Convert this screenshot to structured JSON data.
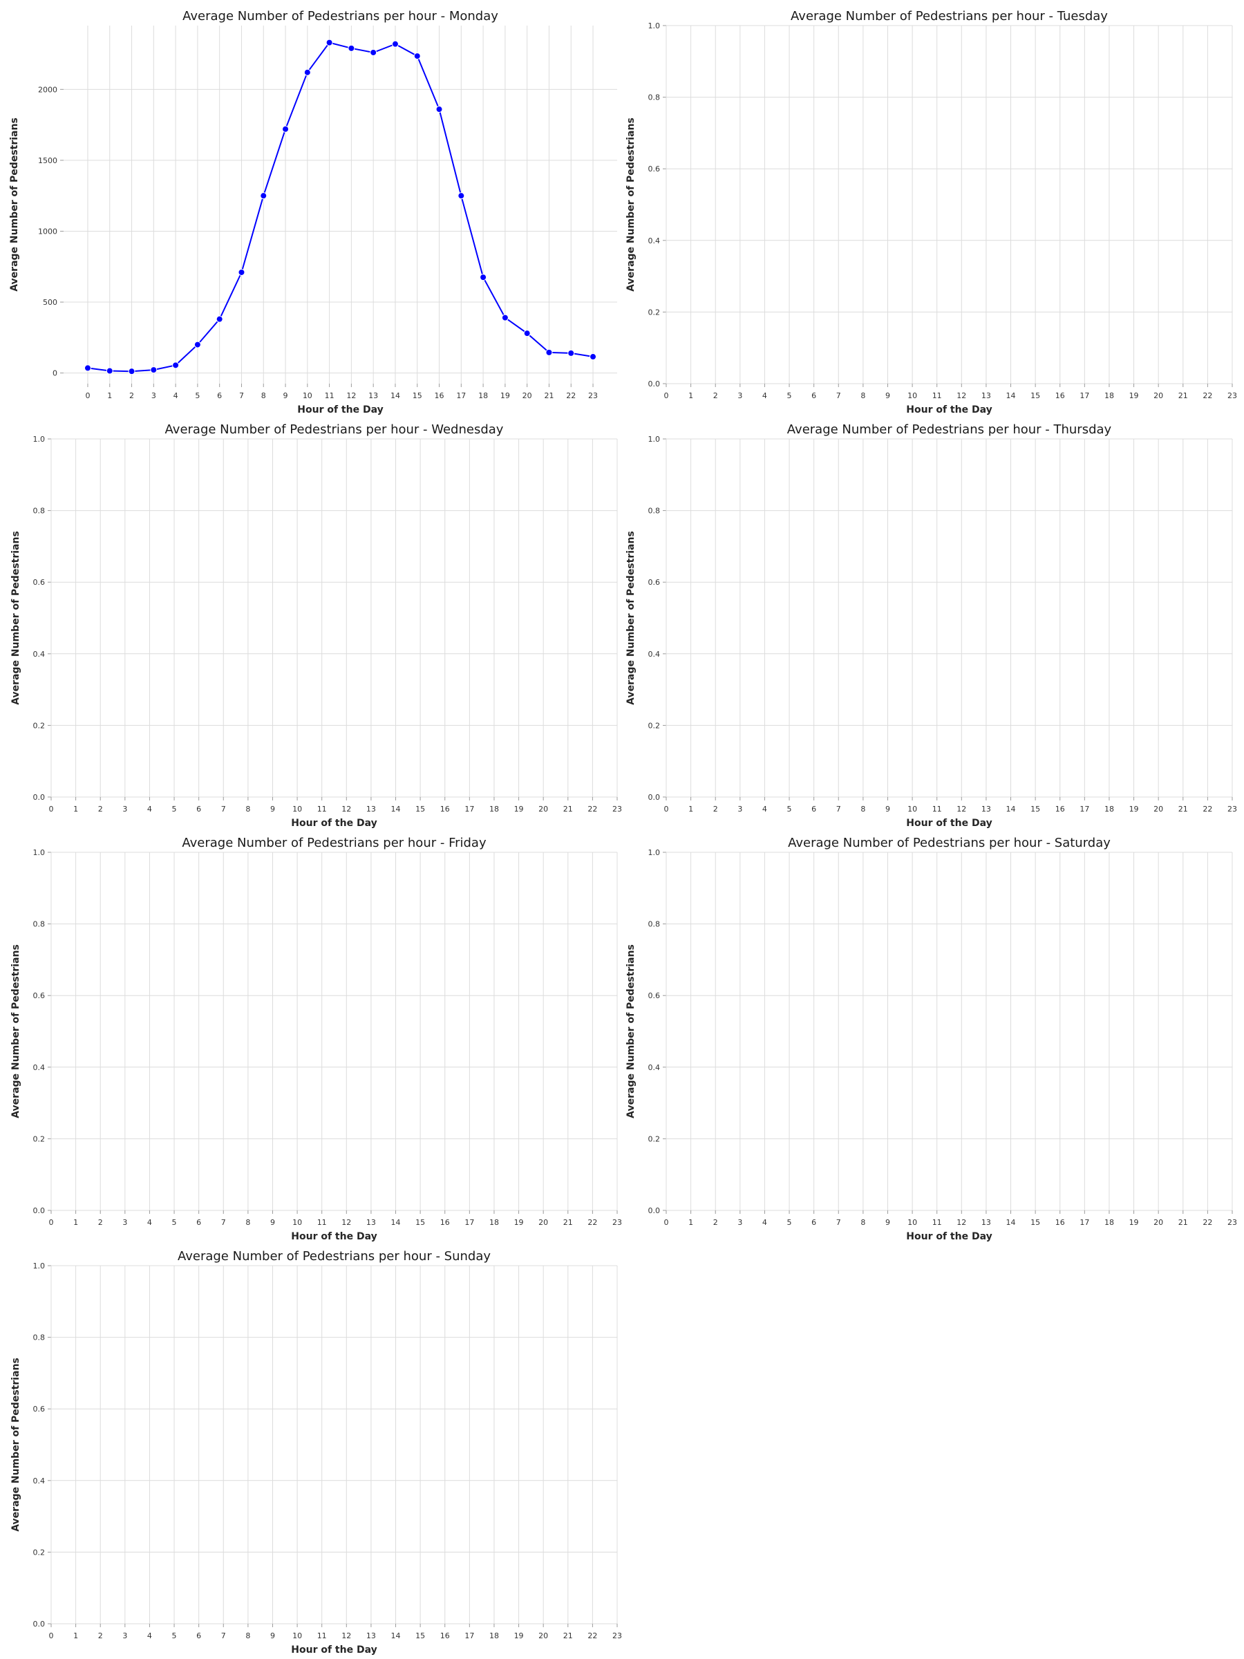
{
  "chart_data": [
    {
      "type": "line",
      "title": "Average Number of Pedestrians per hour - Monday",
      "xlabel": "Hour of the Day",
      "ylabel": "Average Number of Pedestrians",
      "x": [
        0,
        1,
        2,
        3,
        4,
        5,
        6,
        7,
        8,
        9,
        10,
        11,
        12,
        13,
        14,
        15,
        16,
        17,
        18,
        19,
        20,
        21,
        22,
        23
      ],
      "series": [
        {
          "values": [
            35,
            15,
            12,
            22,
            55,
            200,
            380,
            710,
            1250,
            1720,
            2120,
            2330,
            2290,
            2260,
            2320,
            2235,
            1860,
            1250,
            675,
            390,
            280,
            145,
            140,
            115
          ],
          "color": "#0000ff"
        }
      ],
      "xlim": [
        -1.1,
        24.1
      ],
      "ylim": [
        -75,
        2450
      ],
      "yticks": [
        0,
        500,
        1000,
        1500,
        2000
      ],
      "ytick_labels": [
        "0",
        "500",
        "1000",
        "1500",
        "2000"
      ],
      "grid": true
    },
    {
      "type": "line",
      "title": "Average Number of Pedestrians per hour - Tuesday",
      "xlabel": "Hour of the Day",
      "ylabel": "Average Number of Pedestrians",
      "x": [],
      "series": [],
      "xlim": [
        0,
        23
      ],
      "ylim": [
        0,
        1
      ],
      "yticks": [
        0,
        0.2,
        0.4,
        0.6,
        0.8,
        1.0
      ],
      "ytick_labels": [
        "0.0",
        "0.2",
        "0.4",
        "0.6",
        "0.8",
        "1.0"
      ],
      "grid": true
    },
    {
      "type": "line",
      "title": "Average Number of Pedestrians per hour - Wednesday",
      "xlabel": "Hour of the Day",
      "ylabel": "Average Number of Pedestrians",
      "x": [],
      "series": [],
      "xlim": [
        0,
        23
      ],
      "ylim": [
        0,
        1
      ],
      "yticks": [
        0,
        0.2,
        0.4,
        0.6,
        0.8,
        1.0
      ],
      "ytick_labels": [
        "0.0",
        "0.2",
        "0.4",
        "0.6",
        "0.8",
        "1.0"
      ],
      "grid": true
    },
    {
      "type": "line",
      "title": "Average Number of Pedestrians per hour - Thursday",
      "xlabel": "Hour of the Day",
      "ylabel": "Average Number of Pedestrians",
      "x": [],
      "series": [],
      "xlim": [
        0,
        23
      ],
      "ylim": [
        0,
        1
      ],
      "yticks": [
        0,
        0.2,
        0.4,
        0.6,
        0.8,
        1.0
      ],
      "ytick_labels": [
        "0.0",
        "0.2",
        "0.4",
        "0.6",
        "0.8",
        "1.0"
      ],
      "grid": true
    },
    {
      "type": "line",
      "title": "Average Number of Pedestrians per hour - Friday",
      "xlabel": "Hour of the Day",
      "ylabel": "Average Number of Pedestrians",
      "x": [],
      "series": [],
      "xlim": [
        0,
        23
      ],
      "ylim": [
        0,
        1
      ],
      "yticks": [
        0,
        0.2,
        0.4,
        0.6,
        0.8,
        1.0
      ],
      "ytick_labels": [
        "0.0",
        "0.2",
        "0.4",
        "0.6",
        "0.8",
        "1.0"
      ],
      "grid": true
    },
    {
      "type": "line",
      "title": "Average Number of Pedestrians per hour - Saturday",
      "xlabel": "Hour of the Day",
      "ylabel": "Average Number of Pedestrians",
      "x": [],
      "series": [],
      "xlim": [
        0,
        23
      ],
      "ylim": [
        0,
        1
      ],
      "yticks": [
        0,
        0.2,
        0.4,
        0.6,
        0.8,
        1.0
      ],
      "ytick_labels": [
        "0.0",
        "0.2",
        "0.4",
        "0.6",
        "0.8",
        "1.0"
      ],
      "grid": true
    },
    {
      "type": "line",
      "title": "Average Number of Pedestrians per hour - Sunday",
      "xlabel": "Hour of the Day",
      "ylabel": "Average Number of Pedestrians",
      "x": [],
      "series": [],
      "xlim": [
        0,
        23
      ],
      "ylim": [
        0,
        1
      ],
      "yticks": [
        0,
        0.2,
        0.4,
        0.6,
        0.8,
        1.0
      ],
      "ytick_labels": [
        "0.0",
        "0.2",
        "0.4",
        "0.6",
        "0.8",
        "1.0"
      ],
      "grid": true
    }
  ]
}
